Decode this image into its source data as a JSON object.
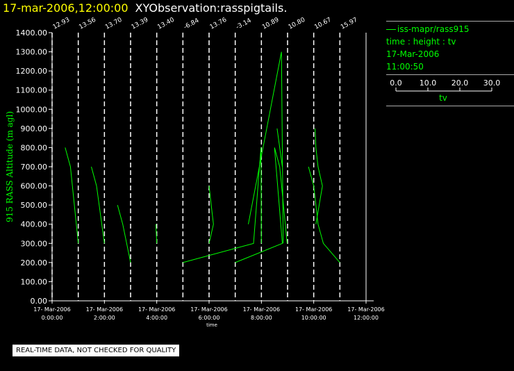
{
  "header": {
    "datetime": "17-mar-2006,12:00:00",
    "name": "XYObservation:rasspigtails."
  },
  "legend": {
    "series_label": "iss-mapr/rass915",
    "desc": "time : height : tv",
    "date": "17-Mar-2006",
    "time": "11:00:50",
    "scale_ticks": [
      "0.0",
      "10.0",
      "20.0",
      "30.0"
    ],
    "scale_label": "tv"
  },
  "footer": {
    "note": "REAL-TIME DATA, NOT CHECKED FOR QUALITY"
  },
  "chart_data": {
    "type": "line",
    "ylabel": "915 RASS Altitude (m agl)",
    "xlabel": "time",
    "ylim": [
      0,
      1400
    ],
    "yticks": [
      "0.00",
      "100.00",
      "200.00",
      "300.00",
      "400.00",
      "500.00",
      "600.00",
      "700.00",
      "800.00",
      "900.00",
      "1000.00",
      "1100.00",
      "1200.00",
      "1300.00",
      "1400.00"
    ],
    "xlim": [
      "17-Mar-2006 00:00",
      "17-Mar-2006 12:00"
    ],
    "xticks": [
      {
        "date": "17- Mar-2006",
        "time": "0:00:00"
      },
      {
        "date": "17- Mar-2006",
        "time": "2:00:00"
      },
      {
        "date": "17- Mar-2006",
        "time": "4:00:00"
      },
      {
        "date": "17- Mar-2006",
        "time": "6:00:00"
      },
      {
        "date": "17- Mar-2006",
        "time": "8:00:00"
      },
      {
        "date": "17- Mar-2006",
        "time": "10:00:00"
      },
      {
        "date": "17- Mar-2006",
        "time": "12:00:00"
      }
    ],
    "pigtail_times": [
      "00:00",
      "01:00",
      "02:00",
      "03:00",
      "04:00",
      "05:00",
      "06:00",
      "07:00",
      "08:00",
      "09:00",
      "10:00",
      "11:00"
    ],
    "pigtail_labels": [
      "12.93",
      "13.56",
      "13.70",
      "13.39",
      "13.40",
      "-6.84",
      "13.76",
      "-3.14",
      "10.89",
      "10.80",
      "10.67",
      "15.97"
    ],
    "series": [
      {
        "name": "iss-mapr/rass915",
        "segments": [
          [
            [
              "00:30",
              800
            ],
            [
              "00:42",
              700
            ],
            [
              "01:00",
              300
            ]
          ],
          [
            [
              "01:30",
              700
            ],
            [
              "01:42",
              600
            ],
            [
              "02:00",
              300
            ]
          ],
          [
            [
              "02:30",
              500
            ],
            [
              "02:42",
              400
            ],
            [
              "03:00",
              200
            ]
          ],
          [
            [
              "03:58",
              400
            ],
            [
              "04:00",
              300
            ]
          ],
          [
            [
              "05:00",
              200
            ],
            [
              "07:42",
              300
            ],
            [
              "07:59",
              800
            ],
            [
              "08:00",
              300
            ]
          ],
          [
            [
              "06:00",
              600
            ],
            [
              "06:05",
              500
            ],
            [
              "06:10",
              400
            ],
            [
              "06:00",
              300
            ]
          ],
          [
            [
              "07:00",
              200
            ],
            [
              "08:48",
              300
            ],
            [
              "08:30",
              800
            ],
            [
              "08:42",
              700
            ],
            [
              "08:59",
              300
            ]
          ],
          [
            [
              "07:30",
              400
            ],
            [
              "08:46",
              1300
            ],
            [
              "08:50",
              300
            ]
          ],
          [
            [
              "08:36",
              900
            ],
            [
              "08:48",
              700
            ]
          ],
          [
            [
              "09:48",
              700
            ],
            [
              "10:00",
              600
            ],
            [
              "10:10",
              400
            ],
            [
              "10:22",
              300
            ],
            [
              "11:00",
              200
            ]
          ],
          [
            [
              "10:03",
              900
            ],
            [
              "10:05",
              800
            ],
            [
              "10:10",
              700
            ],
            [
              "10:20",
              600
            ],
            [
              "10:05",
              400
            ]
          ]
        ]
      }
    ]
  }
}
